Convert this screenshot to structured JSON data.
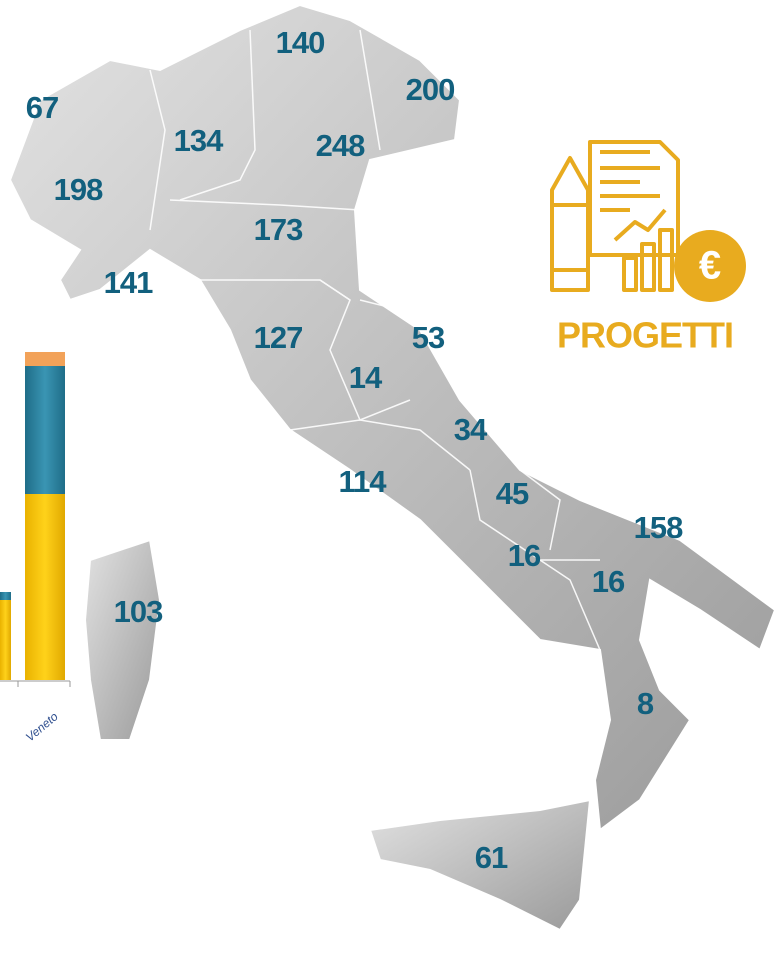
{
  "map": {
    "labels": [
      67,
      198,
      141,
      134,
      140,
      200,
      248,
      173,
      127,
      53,
      14,
      34,
      114,
      45,
      16,
      158,
      16,
      103,
      8,
      61
    ],
    "badge": "PROGETTI",
    "inset_category": "Veneto"
  }
}
